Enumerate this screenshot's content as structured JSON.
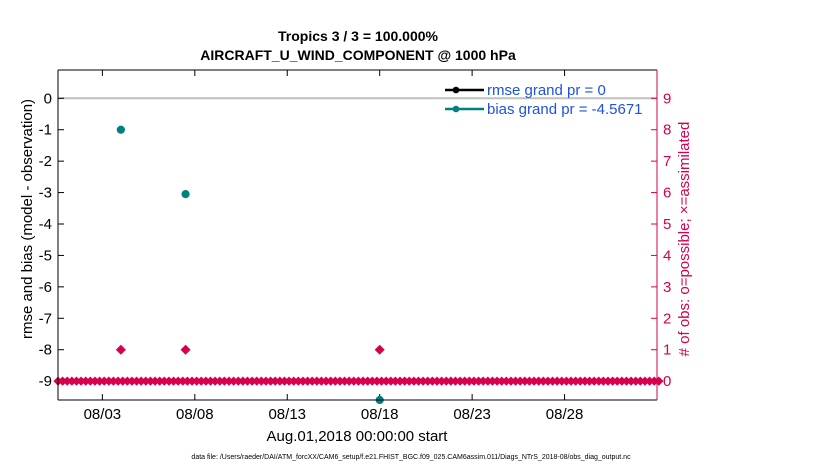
{
  "chart_data": {
    "type": "scatter",
    "title_line1": "Tropics 3 / 3 = 100.000%",
    "title_line2": "AIRCRAFT_U_WIND_COMPONENT @ 1000 hPa",
    "xlabel": "Aug.01,2018 00:00:00 start",
    "ylabel_left": "rmse and bias (model - observation)",
    "ylabel_right": "# of obs: o=possible; ×=assimilated",
    "footer": "data file: /Users/raeder/DAI/ATM_forcXX/CAM6_setup/f.e21.FHIST_BGC.f09_025.CAM6assim.011/Diags_NTrS_2018-08/obs_diag_output.nc",
    "x_ticks": [
      {
        "day": 3,
        "label": "08/03"
      },
      {
        "day": 8,
        "label": "08/08"
      },
      {
        "day": 13,
        "label": "08/13"
      },
      {
        "day": 18,
        "label": "08/18"
      },
      {
        "day": 23,
        "label": "08/23"
      },
      {
        "day": 28,
        "label": "08/28"
      }
    ],
    "xlim_days": [
      0.6,
      33.0
    ],
    "ylim_left": [
      -9.6,
      0.9
    ],
    "yticks_left": [
      0,
      -1,
      -2,
      -3,
      -4,
      -5,
      -6,
      -7,
      -8,
      -9
    ],
    "ylim_right": [
      -0.6,
      9.9
    ],
    "yticks_right": [
      0,
      1,
      2,
      3,
      4,
      5,
      6,
      7,
      8,
      9
    ],
    "zero_line": 0,
    "legend": {
      "placement": "top-right",
      "entries": [
        {
          "label": "rmse grand pr = 0",
          "color": "#000000"
        },
        {
          "label": "bias grand pr = -4.5671",
          "color": "#00807f"
        }
      ]
    },
    "series": [
      {
        "name": "rmse grand pr = 0",
        "color": "#000000",
        "points": []
      },
      {
        "name": "bias grand pr = -4.5671",
        "color": "#00807f",
        "points": [
          {
            "x": 4.0,
            "y": -1.0
          },
          {
            "x": 7.5,
            "y": -3.05
          },
          {
            "x": 18.0,
            "y": -9.6
          }
        ]
      }
    ],
    "obs_counts": {
      "color": "#d6004e",
      "step_days": 0.25,
      "start_day": 0.6,
      "end_day": 33.0,
      "nonzero": [
        {
          "x": 4.0,
          "count": 1
        },
        {
          "x": 7.5,
          "count": 1
        },
        {
          "x": 18.0,
          "count": 1
        }
      ]
    }
  }
}
